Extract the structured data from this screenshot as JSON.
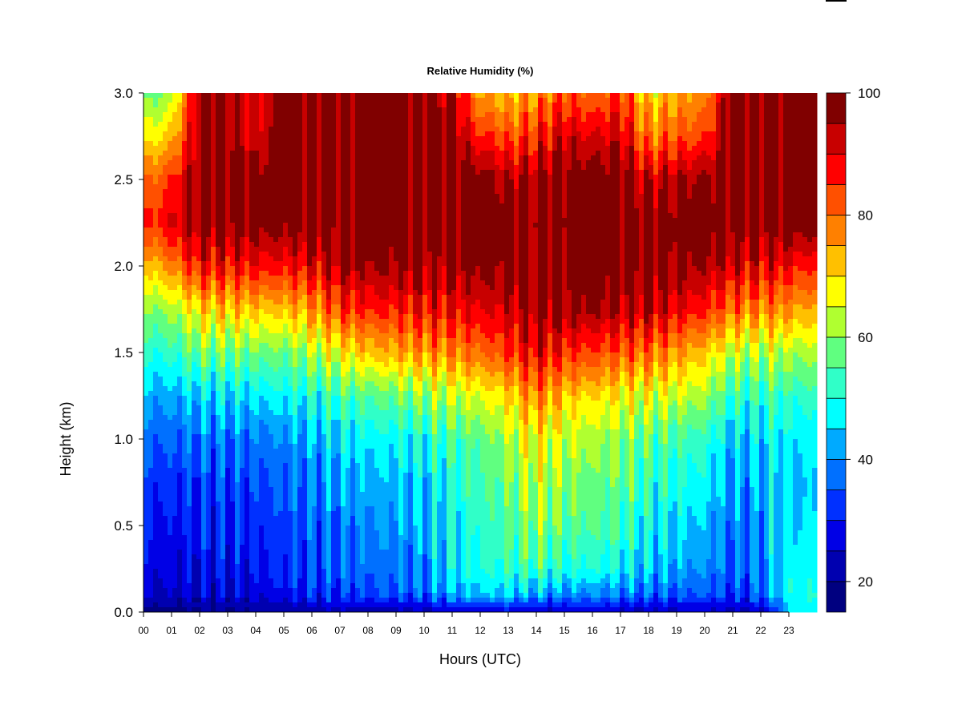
{
  "chart_data": {
    "type": "heatmap",
    "title": "Relative Humidity (%)",
    "xlabel": "Hours (UTC)",
    "ylabel": "Height (km)",
    "x_ticks": [
      "00",
      "01",
      "02",
      "03",
      "04",
      "05",
      "06",
      "07",
      "08",
      "09",
      "10",
      "11",
      "12",
      "13",
      "14",
      "15",
      "16",
      "17",
      "18",
      "19",
      "20",
      "21",
      "22",
      "23"
    ],
    "y_ticks": [
      "0.0",
      "0.5",
      "1.0",
      "1.5",
      "2.0",
      "2.5",
      "3.0"
    ],
    "xlim": [
      0,
      24
    ],
    "ylim": [
      0,
      3.0
    ],
    "colorbar": {
      "min": 15,
      "max": 100,
      "ticks": [
        "20",
        "40",
        "60",
        "80",
        "100"
      ],
      "levels": [
        {
          "from": 15,
          "to": 20,
          "color": "#000080"
        },
        {
          "from": 20,
          "to": 25,
          "color": "#0000b0"
        },
        {
          "from": 25,
          "to": 30,
          "color": "#0000e6"
        },
        {
          "from": 30,
          "to": 35,
          "color": "#0030ff"
        },
        {
          "from": 35,
          "to": 40,
          "color": "#0070ff"
        },
        {
          "from": 40,
          "to": 45,
          "color": "#00aaff"
        },
        {
          "from": 45,
          "to": 50,
          "color": "#00ffff"
        },
        {
          "from": 50,
          "to": 55,
          "color": "#30ffc8"
        },
        {
          "from": 55,
          "to": 60,
          "color": "#60ff80"
        },
        {
          "from": 60,
          "to": 65,
          "color": "#b0ff30"
        },
        {
          "from": 65,
          "to": 70,
          "color": "#ffff00"
        },
        {
          "from": 70,
          "to": 75,
          "color": "#ffc000"
        },
        {
          "from": 75,
          "to": 80,
          "color": "#ff8000"
        },
        {
          "from": 80,
          "to": 85,
          "color": "#ff5000"
        },
        {
          "from": 85,
          "to": 90,
          "color": "#ff0000"
        },
        {
          "from": 90,
          "to": 95,
          "color": "#c80000"
        },
        {
          "from": 95,
          "to": 100,
          "color": "#800000"
        }
      ]
    },
    "heights_km": [
      0.0,
      0.1,
      0.25,
      0.5,
      0.75,
      1.0,
      1.25,
      1.5,
      1.75,
      2.0,
      2.25,
      2.5,
      2.75,
      3.0
    ],
    "rh_profiles": [
      {
        "hour": 0.0,
        "rh": [
          18,
          24,
          27,
          29,
          32,
          36,
          42,
          50,
          58,
          70,
          84,
          78,
          66,
          56
        ]
      },
      {
        "hour": 1.0,
        "rh": [
          18,
          24,
          27,
          29,
          32,
          36,
          42,
          52,
          62,
          78,
          90,
          85,
          72,
          62
        ]
      },
      {
        "hour": 2.0,
        "rh": [
          19,
          25,
          28,
          30,
          33,
          38,
          45,
          58,
          70,
          88,
          97,
          98,
          96,
          95
        ]
      },
      {
        "hour": 3.0,
        "rh": [
          20,
          26,
          29,
          31,
          34,
          38,
          46,
          58,
          72,
          88,
          98,
          99,
          99,
          99
        ]
      },
      {
        "hour": 4.0,
        "rh": [
          20,
          26,
          29,
          31,
          34,
          38,
          46,
          58,
          72,
          88,
          98,
          97,
          90,
          88
        ]
      },
      {
        "hour": 5.0,
        "rh": [
          21,
          29,
          32,
          34,
          36,
          40,
          48,
          58,
          72,
          88,
          98,
          99,
          99,
          99
        ]
      },
      {
        "hour": 6.0,
        "rh": [
          22,
          31,
          34,
          36,
          38,
          42,
          50,
          62,
          76,
          90,
          99,
          99,
          99,
          99
        ]
      },
      {
        "hour": 7.0,
        "rh": [
          22,
          33,
          36,
          38,
          42,
          46,
          54,
          68,
          84,
          95,
          99,
          99,
          99,
          99
        ]
      },
      {
        "hour": 8.0,
        "rh": [
          22,
          34,
          37,
          40,
          43,
          47,
          56,
          72,
          86,
          96,
          99,
          99,
          99,
          99
        ]
      },
      {
        "hour": 9.0,
        "rh": [
          22,
          35,
          38,
          41,
          44,
          48,
          58,
          74,
          87,
          96,
          99,
          99,
          99,
          99
        ]
      },
      {
        "hour": 10.0,
        "rh": [
          23,
          36,
          40,
          42,
          45,
          50,
          60,
          76,
          88,
          96,
          99,
          99,
          99,
          99
        ]
      },
      {
        "hour": 11.0,
        "rh": [
          26,
          42,
          47,
          48,
          50,
          54,
          64,
          78,
          89,
          96,
          99,
          99,
          97,
          93
        ]
      },
      {
        "hour": 12.0,
        "rh": [
          27,
          44,
          50,
          52,
          54,
          57,
          66,
          80,
          90,
          97,
          99,
          98,
          86,
          74
        ]
      },
      {
        "hour": 13.0,
        "rh": [
          27,
          45,
          52,
          55,
          58,
          62,
          70,
          84,
          92,
          97,
          99,
          94,
          82,
          72
        ]
      },
      {
        "hour": 14.0,
        "rh": [
          24,
          42,
          54,
          60,
          64,
          68,
          78,
          90,
          96,
          98,
          99,
          96,
          86,
          76
        ]
      },
      {
        "hour": 15.0,
        "rh": [
          24,
          40,
          50,
          56,
          60,
          64,
          72,
          86,
          96,
          98,
          99,
          98,
          92,
          82
        ]
      },
      {
        "hour": 16.0,
        "rh": [
          24,
          40,
          50,
          56,
          58,
          62,
          70,
          84,
          96,
          99,
          99,
          99,
          90,
          80
        ]
      },
      {
        "hour": 17.0,
        "rh": [
          24,
          38,
          48,
          54,
          57,
          60,
          68,
          82,
          94,
          98,
          99,
          99,
          92,
          84
        ]
      },
      {
        "hour": 18.0,
        "rh": [
          23,
          36,
          44,
          48,
          52,
          56,
          66,
          80,
          94,
          98,
          99,
          92,
          78,
          70
        ]
      },
      {
        "hour": 19.0,
        "rh": [
          24,
          36,
          42,
          46,
          50,
          54,
          64,
          76,
          90,
          97,
          99,
          94,
          82,
          74
        ]
      },
      {
        "hour": 20.0,
        "rh": [
          24,
          35,
          40,
          44,
          48,
          52,
          62,
          72,
          86,
          95,
          99,
          96,
          84,
          76
        ]
      },
      {
        "hour": 21.0,
        "rh": [
          23,
          32,
          36,
          38,
          40,
          44,
          52,
          64,
          80,
          92,
          99,
          99,
          99,
          99
        ]
      },
      {
        "hour": 22.0,
        "rh": [
          24,
          36,
          38,
          40,
          42,
          46,
          52,
          62,
          78,
          90,
          99,
          99,
          99,
          99
        ]
      },
      {
        "hour": 22.5,
        "rh": [
          32,
          44,
          46,
          46,
          46,
          48,
          54,
          64,
          78,
          90,
          99,
          99,
          99,
          99
        ]
      },
      {
        "hour": 23.0,
        "rh": [
          44,
          48,
          48,
          46,
          45,
          47,
          52,
          62,
          76,
          88,
          99,
          99,
          99,
          99
        ]
      },
      {
        "hour": 23.8,
        "rh": [
          48,
          50,
          48,
          45,
          44,
          46,
          52,
          62,
          74,
          86,
          99,
          99,
          99,
          99
        ]
      }
    ]
  }
}
